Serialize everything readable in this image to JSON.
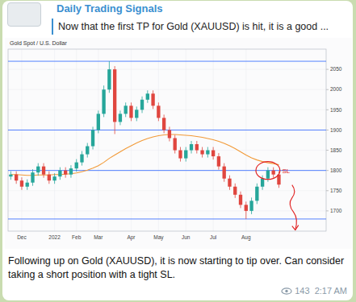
{
  "post": {
    "channel": "Daily Trading Signals",
    "reply_text": "Now that the first TP for Gold (XAUUSD) is hit, it is a good ...",
    "text": "Following up on Gold (XAUUSD), it is now starting to tip over. Can consider taking a short position with a tight SL.",
    "views": 143,
    "time": "2:17 AM"
  },
  "chart_data": {
    "type": "candlestick",
    "title": "Gold Spot / U.S. Dollar",
    "categories": [
      null,
      null,
      "Dec",
      null,
      null,
      null,
      null,
      null,
      "2022",
      null,
      null,
      null,
      "Feb",
      null,
      null,
      null,
      "Mar",
      null,
      null,
      null,
      null,
      null,
      "Apr",
      null,
      null,
      null,
      null,
      "May",
      null,
      null,
      null,
      null,
      "Jun",
      null,
      null,
      null,
      null,
      "Jul",
      null,
      null,
      null,
      null,
      null,
      "Aug",
      null,
      null,
      null,
      null,
      null,
      null
    ],
    "open": [
      1785,
      1790,
      1775,
      1760,
      1770,
      1795,
      1810,
      1790,
      1775,
      1785,
      1800,
      1790,
      1805,
      1820,
      1840,
      1860,
      1900,
      1940,
      2000,
      2050,
      1920,
      1940,
      1960,
      1930,
      1950,
      1975,
      1990,
      1960,
      1930,
      1900,
      1880,
      1850,
      1830,
      1850,
      1865,
      1850,
      1840,
      1850,
      1835,
      1810,
      1780,
      1760,
      1740,
      1715,
      1700,
      1725,
      1760,
      1780,
      1800,
      1790
    ],
    "high": [
      1798,
      1798,
      1783,
      1778,
      1803,
      1818,
      1818,
      1798,
      1793,
      1808,
      1808,
      1813,
      1828,
      1848,
      1868,
      1908,
      1948,
      2010,
      2070,
      2058,
      1948,
      1968,
      1968,
      1958,
      1983,
      1998,
      1998,
      1968,
      1938,
      1908,
      1888,
      1858,
      1858,
      1873,
      1873,
      1858,
      1858,
      1858,
      1843,
      1818,
      1788,
      1768,
      1748,
      1723,
      1733,
      1768,
      1788,
      1808,
      1808,
      1798
    ],
    "low": [
      1777,
      1767,
      1752,
      1752,
      1762,
      1787,
      1782,
      1767,
      1767,
      1777,
      1782,
      1782,
      1797,
      1812,
      1832,
      1852,
      1892,
      1932,
      1992,
      1890,
      1912,
      1932,
      1922,
      1922,
      1942,
      1967,
      1952,
      1922,
      1892,
      1872,
      1842,
      1822,
      1822,
      1842,
      1842,
      1832,
      1832,
      1827,
      1802,
      1772,
      1752,
      1732,
      1707,
      1680,
      1692,
      1717,
      1752,
      1772,
      1782,
      1757
    ],
    "close": [
      1790,
      1775,
      1760,
      1770,
      1795,
      1810,
      1790,
      1775,
      1785,
      1800,
      1790,
      1805,
      1820,
      1840,
      1860,
      1900,
      1940,
      2000,
      2050,
      1920,
      1940,
      1960,
      1930,
      1950,
      1975,
      1990,
      1960,
      1930,
      1900,
      1880,
      1850,
      1830,
      1850,
      1865,
      1850,
      1840,
      1850,
      1835,
      1810,
      1780,
      1760,
      1740,
      1715,
      1700,
      1725,
      1760,
      1780,
      1800,
      1790,
      1765
    ],
    "series": [
      {
        "type": "line",
        "color": "#f29a38",
        "values": [
          1790,
          1790,
          1789,
          1788,
          1788,
          1789,
          1789,
          1789,
          1790,
          1790,
          1791,
          1792,
          1794,
          1797,
          1801,
          1806,
          1812,
          1820,
          1830,
          1838,
          1846,
          1854,
          1861,
          1868,
          1874,
          1879,
          1883,
          1886,
          1888,
          1889,
          1889,
          1888,
          1887,
          1886,
          1884,
          1882,
          1879,
          1876,
          1872,
          1867,
          1861,
          1854,
          1846,
          1838,
          1831,
          1826,
          1822,
          1819,
          1817,
          1814
        ]
      }
    ],
    "levels": [
      2070,
      1900,
      1800,
      1680
    ],
    "annotation": "SL",
    "ylim": [
      1650,
      2100
    ],
    "yticks": [
      1700,
      1750,
      1800,
      1850,
      1900,
      1950,
      2000,
      2050
    ],
    "grid": true
  }
}
